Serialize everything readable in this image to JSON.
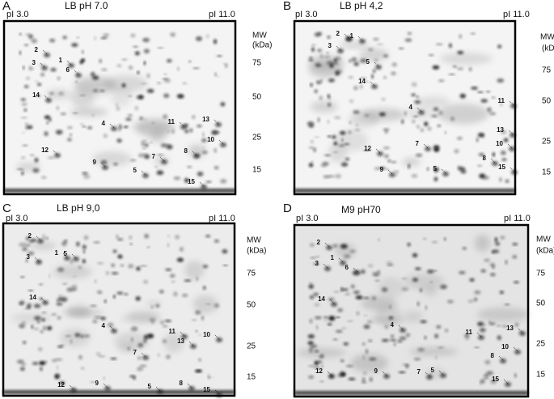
{
  "panels": [
    {
      "letter": "A",
      "title": "LB  pH 7.0",
      "pi_left": "pI 3.0",
      "pi_right": "pI 11.0",
      "mw_label": "MW",
      "mw_unit": "(kDa)",
      "mw_ticks": [
        "75",
        "50",
        "25",
        "15"
      ],
      "spots": [
        "2",
        "3",
        "1",
        "6",
        "14",
        "4",
        "11",
        "13",
        "8",
        "10",
        "12",
        "9",
        "7",
        "5",
        "15"
      ]
    },
    {
      "letter": "B",
      "title": "LB  pH 4,2",
      "pi_left": "pI 3.0",
      "pi_right": "pI 11.0",
      "mw_label": "MW",
      "mw_unit": "(kDa)",
      "mw_ticks": [
        "75",
        "50",
        "25",
        "15"
      ],
      "spots": [
        "2",
        "1",
        "3",
        "5",
        "14",
        "4",
        "11",
        "13",
        "10",
        "8",
        "15",
        "12",
        "7",
        "9",
        "5"
      ]
    },
    {
      "letter": "C",
      "title": "LB  pH 9,0",
      "pi_left": "pI 3.0",
      "pi_right": "pI 11.0",
      "mw_label": "MW",
      "mw_unit": "(kDa)",
      "mw_ticks": [
        "75",
        "50",
        "25",
        "15"
      ],
      "spots": [
        "2",
        "3",
        "1",
        "5",
        "14",
        "4",
        "11",
        "10",
        "13",
        "7",
        "8",
        "5",
        "12",
        "9",
        "15"
      ]
    },
    {
      "letter": "D",
      "title": "M9  pH70",
      "pi_left": "pI 3.0",
      "pi_right": "pI 11.0",
      "mw_label": "MW",
      "mw_unit": "(kDa)",
      "mw_ticks": [
        "75",
        "50",
        "25",
        "15"
      ],
      "spots": [
        "2",
        "3",
        "1",
        "6",
        "14",
        "4",
        "11",
        "13",
        "10",
        "8",
        "12",
        "9",
        "7",
        "5",
        "15"
      ]
    }
  ]
}
